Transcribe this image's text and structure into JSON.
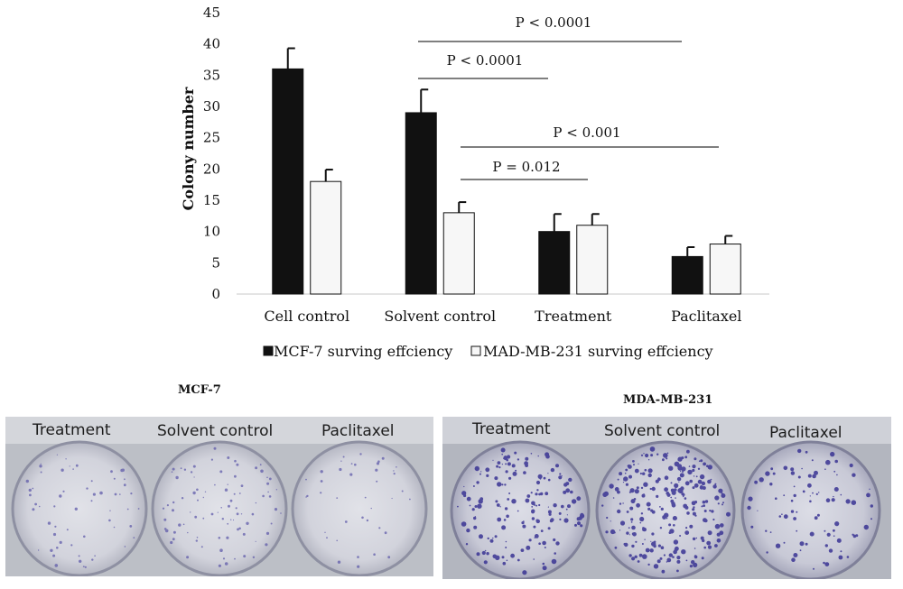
{
  "chart_data": {
    "type": "bar",
    "ylabel": "Colony number",
    "ylim": [
      0,
      45
    ],
    "yticks": [
      0,
      5,
      10,
      15,
      20,
      25,
      30,
      35,
      40,
      45
    ],
    "categories": [
      "Cell control",
      "Solvent control",
      "Treatment",
      "Paclitaxel"
    ],
    "series": [
      {
        "name": "MCF-7 surving effciency",
        "color": "#111111",
        "values": [
          36,
          29,
          10,
          6
        ],
        "errors": [
          3.3,
          3.7,
          2.8,
          1.5
        ]
      },
      {
        "name": "MAD-MB-231 surving effciency",
        "color": "#f7f7f7",
        "values": [
          18,
          13,
          11,
          8
        ],
        "errors": [
          1.9,
          1.7,
          1.8,
          1.3
        ]
      }
    ],
    "legend_position": "bottom",
    "grid": false,
    "annotations": [
      {
        "text": "P < 0.0001",
        "from_category": "Solvent control",
        "to_category": "Paclitaxel"
      },
      {
        "text": "P < 0.0001",
        "from_category": "Solvent control",
        "to_category": "Treatment"
      },
      {
        "text": "P < 0.001",
        "from_category": "Solvent control",
        "to_category": "Paclitaxel"
      },
      {
        "text": "P = 0.012",
        "from_category": "Solvent control",
        "to_category": "Treatment"
      }
    ]
  },
  "photos": [
    {
      "title": "MCF-7",
      "wells": [
        "Treatment",
        "Solvent control",
        "Paclitaxel"
      ]
    },
    {
      "title": "MDA-MB-231",
      "wells": [
        "Treatment",
        "Solvent control",
        "Paclitaxel"
      ]
    }
  ],
  "colors": {
    "plate_bg": "#b9bcc2",
    "stain": "#3d3896"
  }
}
